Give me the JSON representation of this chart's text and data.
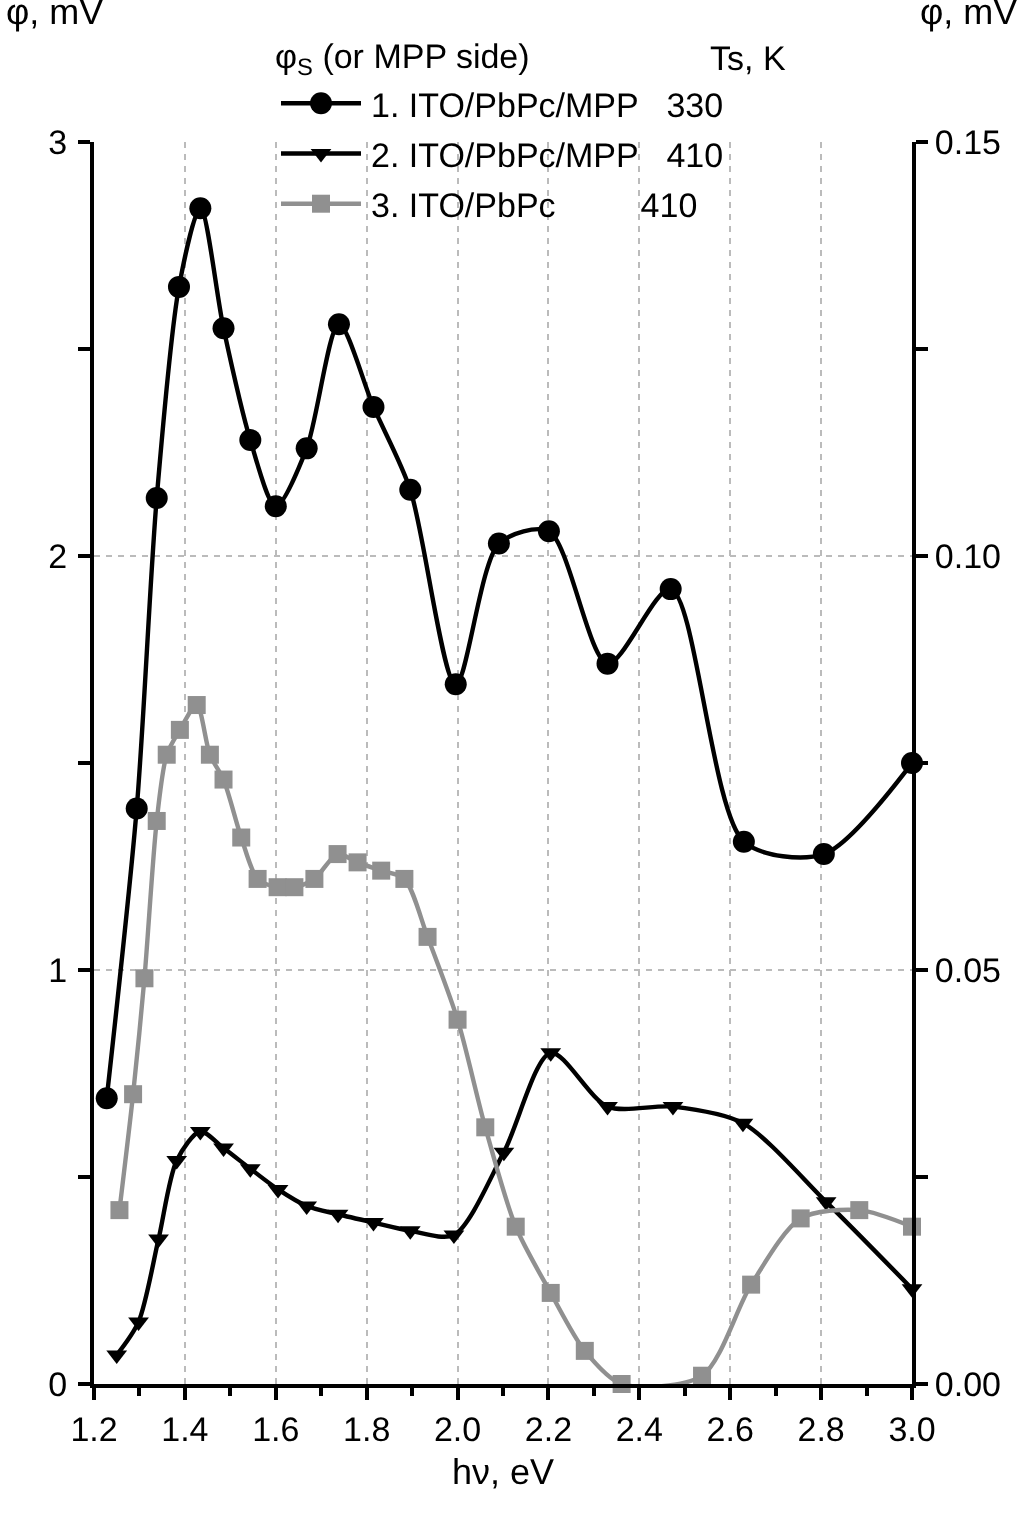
{
  "chart_data": {
    "type": "line",
    "xlabel": "hν, eV",
    "ylabel": "φ, mV",
    "y2label": "φ, mV",
    "legend_title": "φ$_{S}$ (or MPP side)",
    "annotations": [
      "Ts, K"
    ],
    "xlim": [
      1.2,
      3.0
    ],
    "xticks": [
      {
        "value": 1.2,
        "label": "1.2"
      },
      1.4,
      1.6,
      1.8,
      {
        "value": 2.0,
        "label": "2.0"
      },
      2.2,
      2.4,
      2.6,
      2.8,
      {
        "value": 3.0,
        "label": "3.0"
      }
    ],
    "ylim": [
      0,
      3
    ],
    "yticks": [
      0,
      1,
      2,
      3
    ],
    "y2lim": [
      0,
      0.15
    ],
    "y2ticks": [
      {
        "value": 0,
        "label": "0.00"
      },
      0.05,
      {
        "value": 0.1,
        "label": "0.10"
      },
      0.15
    ],
    "grid": true,
    "legend": "top",
    "line_style": "solid",
    "series": [
      {
        "name": "1. ITO/PbPc/MPP   330",
        "color": "#000000",
        "marker": "circle",
        "x": [
          1.228,
          1.294,
          1.338,
          1.387,
          1.434,
          1.485,
          1.544,
          1.6,
          1.668,
          1.739,
          1.815,
          1.896,
          1.996,
          2.091,
          2.201,
          2.33,
          2.469,
          2.63,
          2.806,
          3.0
        ],
        "values": [
          0.69,
          1.39,
          2.14,
          2.65,
          2.84,
          2.55,
          2.28,
          2.12,
          2.26,
          2.56,
          2.36,
          2.16,
          1.69,
          2.03,
          2.06,
          1.74,
          1.92,
          1.31,
          1.28,
          1.5
        ]
      },
      {
        "name": "2. ITO/PbPc/MPP   410",
        "color": "#000000",
        "marker": "triangle",
        "x": [
          1.25,
          1.298,
          1.342,
          1.382,
          1.434,
          1.485,
          1.544,
          1.605,
          1.668,
          1.737,
          1.815,
          1.896,
          1.992,
          2.102,
          2.205,
          2.33,
          2.474,
          2.628,
          2.811,
          3.0
        ],
        "values": [
          0.07,
          0.15,
          0.35,
          0.54,
          0.61,
          0.57,
          0.52,
          0.47,
          0.43,
          0.41,
          0.39,
          0.37,
          0.36,
          0.56,
          0.8,
          0.67,
          0.67,
          0.63,
          0.44,
          0.23
        ]
      },
      {
        "name": "3. ITO/PbPc         410",
        "color": "#909090",
        "marker": "square",
        "axis": "y2",
        "x": [
          1.256,
          1.286,
          1.311,
          1.338,
          1.36,
          1.389,
          1.426,
          1.455,
          1.485,
          1.524,
          1.56,
          1.604,
          1.641,
          1.685,
          1.736,
          1.78,
          1.832,
          1.883,
          1.934,
          2.0,
          2.061,
          2.128,
          2.205,
          2.28,
          2.361,
          2.538,
          2.646,
          2.755,
          2.884,
          3.0
        ],
        "values": [
          0.021,
          0.035,
          0.049,
          0.068,
          0.076,
          0.079,
          0.082,
          0.076,
          0.073,
          0.066,
          0.061,
          0.06,
          0.06,
          0.061,
          0.064,
          0.063,
          0.062,
          0.061,
          0.054,
          0.044,
          0.031,
          0.019,
          0.011,
          0.004,
          0.0,
          0.001,
          0.012,
          0.02,
          0.021,
          0.019
        ]
      }
    ]
  }
}
